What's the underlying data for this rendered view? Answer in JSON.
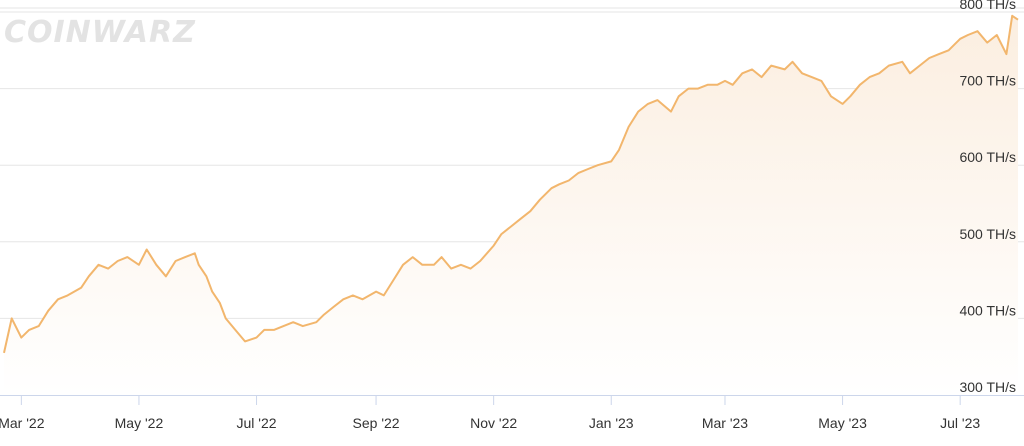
{
  "brand": {
    "watermark": "COINWARZ"
  },
  "colors": {
    "line": "#f2b66d",
    "area_top": "#fbeee0",
    "area_bottom": "#ffffff",
    "grid": "#e6e6e6",
    "text": "#333333"
  },
  "chart_data": {
    "type": "area",
    "title": "",
    "xlabel": "",
    "ylabel": "",
    "y_unit": "TH/s",
    "ylim": [
      300,
      800
    ],
    "y_ticks": [
      300,
      400,
      500,
      600,
      700,
      800
    ],
    "y_tick_labels": [
      "300 TH/s",
      "400 TH/s",
      "500 TH/s",
      "600 TH/s",
      "700 TH/s",
      "800 TH/s"
    ],
    "xlim": [
      "2022-02-20",
      "2023-07-31"
    ],
    "x_ticks": [
      "2022-03-01",
      "2022-05-01",
      "2022-07-01",
      "2022-09-01",
      "2022-11-01",
      "2023-01-01",
      "2023-03-01",
      "2023-05-01",
      "2023-07-01"
    ],
    "x_tick_labels": [
      "Mar '22",
      "May '22",
      "Jul '22",
      "Sep '22",
      "Nov '22",
      "Jan '23",
      "Mar '23",
      "May '23",
      "Jul '23"
    ],
    "grid": true,
    "series": [
      {
        "values": [
          [
            "2022-02-20",
            355
          ],
          [
            "2022-02-24",
            400
          ],
          [
            "2022-03-01",
            375
          ],
          [
            "2022-03-05",
            385
          ],
          [
            "2022-03-10",
            390
          ],
          [
            "2022-03-15",
            410
          ],
          [
            "2022-03-20",
            425
          ],
          [
            "2022-03-25",
            430
          ],
          [
            "2022-04-01",
            440
          ],
          [
            "2022-04-05",
            455
          ],
          [
            "2022-04-10",
            470
          ],
          [
            "2022-04-15",
            465
          ],
          [
            "2022-04-20",
            475
          ],
          [
            "2022-04-25",
            480
          ],
          [
            "2022-05-01",
            470
          ],
          [
            "2022-05-05",
            490
          ],
          [
            "2022-05-10",
            470
          ],
          [
            "2022-05-15",
            455
          ],
          [
            "2022-05-20",
            475
          ],
          [
            "2022-05-25",
            480
          ],
          [
            "2022-05-30",
            485
          ],
          [
            "2022-06-01",
            470
          ],
          [
            "2022-06-05",
            455
          ],
          [
            "2022-06-08",
            435
          ],
          [
            "2022-06-12",
            420
          ],
          [
            "2022-06-15",
            400
          ],
          [
            "2022-06-20",
            385
          ],
          [
            "2022-06-25",
            370
          ],
          [
            "2022-07-01",
            375
          ],
          [
            "2022-07-05",
            385
          ],
          [
            "2022-07-10",
            385
          ],
          [
            "2022-07-15",
            390
          ],
          [
            "2022-07-20",
            395
          ],
          [
            "2022-07-25",
            390
          ],
          [
            "2022-08-01",
            395
          ],
          [
            "2022-08-05",
            405
          ],
          [
            "2022-08-10",
            415
          ],
          [
            "2022-08-15",
            425
          ],
          [
            "2022-08-20",
            430
          ],
          [
            "2022-08-25",
            425
          ],
          [
            "2022-09-01",
            435
          ],
          [
            "2022-09-05",
            430
          ],
          [
            "2022-09-10",
            450
          ],
          [
            "2022-09-15",
            470
          ],
          [
            "2022-09-20",
            480
          ],
          [
            "2022-09-25",
            470
          ],
          [
            "2022-10-01",
            470
          ],
          [
            "2022-10-05",
            480
          ],
          [
            "2022-10-10",
            465
          ],
          [
            "2022-10-15",
            470
          ],
          [
            "2022-10-20",
            465
          ],
          [
            "2022-10-25",
            475
          ],
          [
            "2022-11-01",
            495
          ],
          [
            "2022-11-05",
            510
          ],
          [
            "2022-11-10",
            520
          ],
          [
            "2022-11-15",
            530
          ],
          [
            "2022-11-20",
            540
          ],
          [
            "2022-11-25",
            555
          ],
          [
            "2022-12-01",
            570
          ],
          [
            "2022-12-05",
            575
          ],
          [
            "2022-12-10",
            580
          ],
          [
            "2022-12-15",
            590
          ],
          [
            "2022-12-20",
            595
          ],
          [
            "2022-12-25",
            600
          ],
          [
            "2023-01-01",
            605
          ],
          [
            "2023-01-05",
            620
          ],
          [
            "2023-01-10",
            650
          ],
          [
            "2023-01-15",
            670
          ],
          [
            "2023-01-20",
            680
          ],
          [
            "2023-01-25",
            685
          ],
          [
            "2023-02-01",
            670
          ],
          [
            "2023-02-05",
            690
          ],
          [
            "2023-02-10",
            700
          ],
          [
            "2023-02-15",
            700
          ],
          [
            "2023-02-20",
            705
          ],
          [
            "2023-02-25",
            705
          ],
          [
            "2023-03-01",
            710
          ],
          [
            "2023-03-05",
            705
          ],
          [
            "2023-03-10",
            720
          ],
          [
            "2023-03-15",
            725
          ],
          [
            "2023-03-20",
            715
          ],
          [
            "2023-03-25",
            730
          ],
          [
            "2023-04-01",
            725
          ],
          [
            "2023-04-05",
            735
          ],
          [
            "2023-04-10",
            720
          ],
          [
            "2023-04-15",
            715
          ],
          [
            "2023-04-20",
            710
          ],
          [
            "2023-04-25",
            690
          ],
          [
            "2023-05-01",
            680
          ],
          [
            "2023-05-05",
            690
          ],
          [
            "2023-05-10",
            705
          ],
          [
            "2023-05-15",
            715
          ],
          [
            "2023-05-20",
            720
          ],
          [
            "2023-05-25",
            730
          ],
          [
            "2023-06-01",
            735
          ],
          [
            "2023-06-05",
            720
          ],
          [
            "2023-06-10",
            730
          ],
          [
            "2023-06-15",
            740
          ],
          [
            "2023-06-20",
            745
          ],
          [
            "2023-06-25",
            750
          ],
          [
            "2023-07-01",
            765
          ],
          [
            "2023-07-05",
            770
          ],
          [
            "2023-07-10",
            775
          ],
          [
            "2023-07-15",
            760
          ],
          [
            "2023-07-20",
            770
          ],
          [
            "2023-07-25",
            745
          ],
          [
            "2023-07-28",
            795
          ],
          [
            "2023-07-31",
            790
          ]
        ]
      }
    ]
  }
}
